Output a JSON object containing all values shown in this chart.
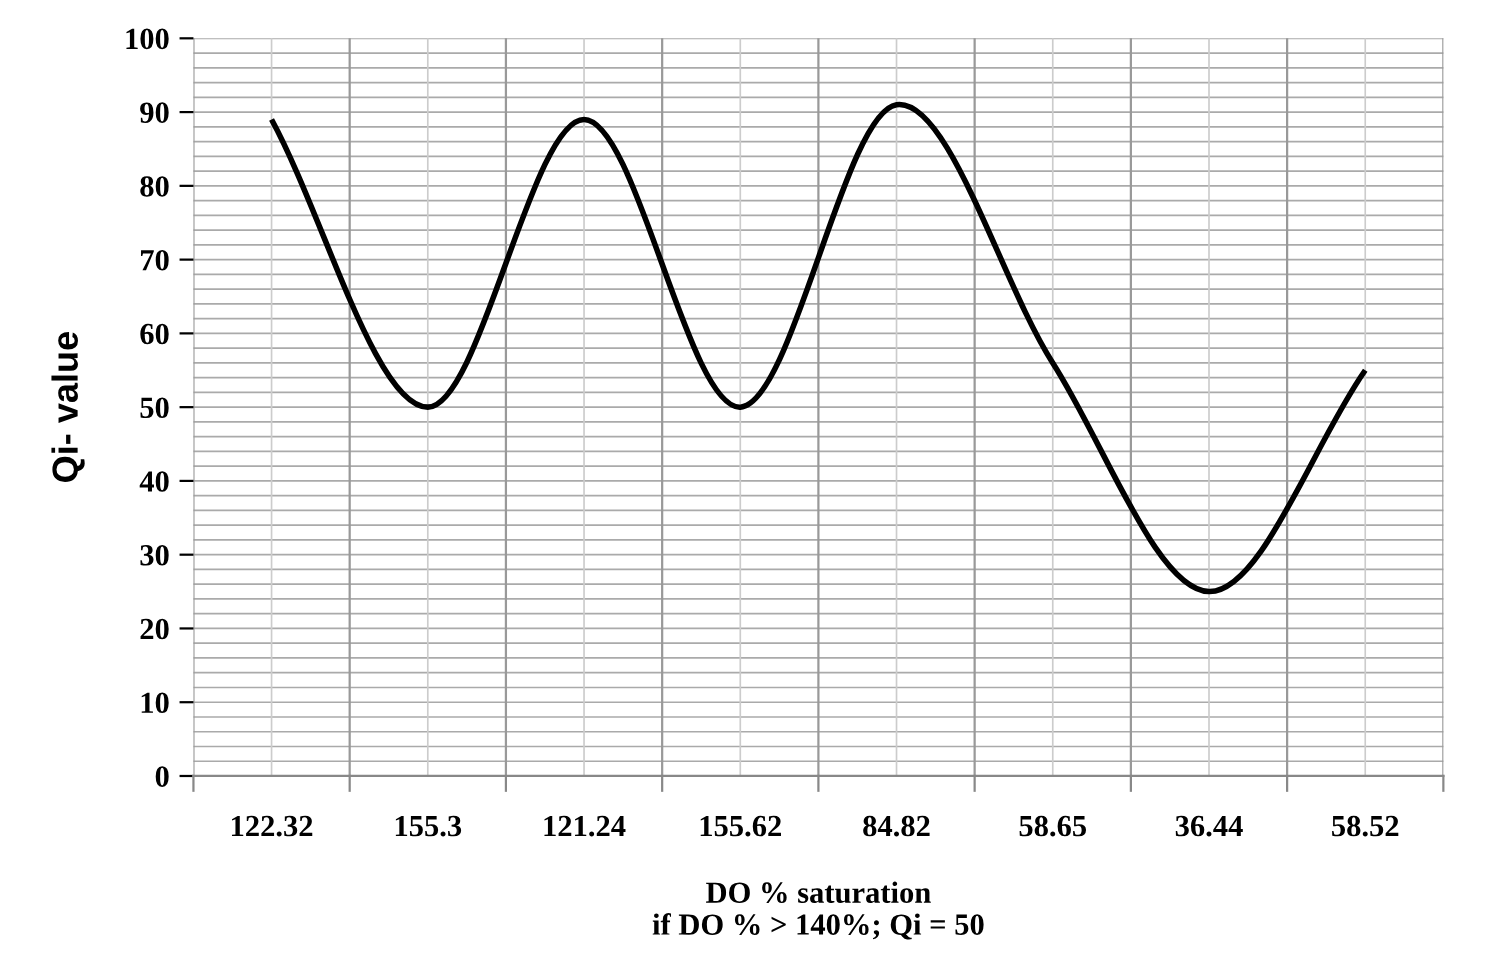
{
  "chart_data": {
    "type": "line",
    "xlabel": "DO % saturation\nif DO % > 140%; Qi = 50",
    "ylabel": "Qi- value",
    "categories": [
      "122.32",
      "155.3",
      "121.24",
      "155.62",
      "84.82",
      "58.65",
      "36.44",
      "58.52"
    ],
    "series": [
      {
        "color": "#000000",
        "values": [
          89,
          50,
          89,
          50,
          91,
          56,
          25,
          55
        ]
      }
    ],
    "ylim": [
      0,
      100
    ],
    "yticks": [
      0,
      10,
      20,
      30,
      40,
      50,
      60,
      70,
      80,
      90,
      100
    ],
    "grid": true,
    "marker": "none",
    "line_style": "solid"
  }
}
